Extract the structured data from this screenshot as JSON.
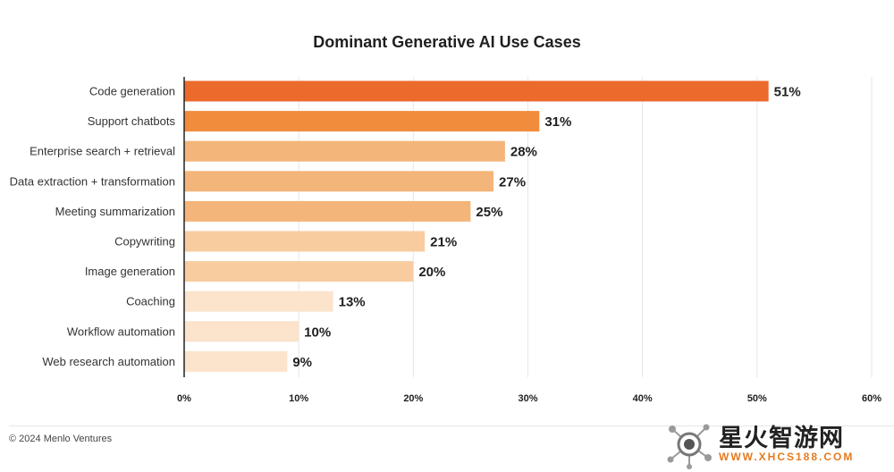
{
  "chart_data": {
    "type": "bar",
    "orientation": "horizontal",
    "title": "Dominant Generative AI Use Cases",
    "categories": [
      "Code generation",
      "Support chatbots",
      "Enterprise search + retrieval",
      "Data extraction + transformation",
      "Meeting summarization",
      "Copywriting",
      "Image generation",
      "Coaching",
      "Workflow automation",
      "Web research automation"
    ],
    "values": [
      51,
      31,
      28,
      27,
      25,
      21,
      20,
      13,
      10,
      9
    ],
    "value_labels": [
      "51%",
      "31%",
      "28%",
      "27%",
      "25%",
      "21%",
      "20%",
      "13%",
      "10%",
      "9%"
    ],
    "bar_colors": [
      "#eb6a2c",
      "#f28c3d",
      "#f4b57a",
      "#f4b57a",
      "#f4b57a",
      "#f8cc9f",
      "#f8cc9f",
      "#fbe3cc",
      "#fbe3cc",
      "#fbe3cc"
    ],
    "xlim": [
      0,
      60
    ],
    "xticks": [
      0,
      10,
      20,
      30,
      40,
      50,
      60
    ],
    "xtick_labels": [
      "0%",
      "10%",
      "20%",
      "30%",
      "40%",
      "50%",
      "60%"
    ],
    "grid": true,
    "xlabel": "",
    "ylabel": ""
  },
  "footer": {
    "copyright": "© 2024 Menlo Ventures"
  },
  "watermark": {
    "title": "星火智游网",
    "url": "WWW.XHCS188.COM"
  },
  "colors": {
    "axis": "#222222",
    "grid": "#e6e6e6"
  }
}
